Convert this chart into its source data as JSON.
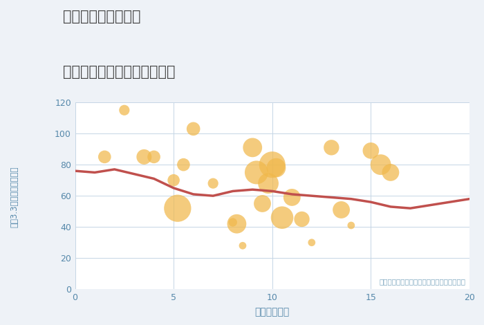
{
  "title_line1": "三重県伊賀市野村の",
  "title_line2": "駅距離別中古マンション価格",
  "xlabel": "駅距離（分）",
  "ylabel": "坪（3.3㎡）単価（万円）",
  "bg_color": "#eef2f7",
  "plot_bg_color": "#ffffff",
  "xlim": [
    0,
    20
  ],
  "ylim": [
    0,
    120
  ],
  "yticks": [
    0,
    20,
    40,
    60,
    80,
    100,
    120
  ],
  "xticks": [
    0,
    5,
    10,
    15,
    20
  ],
  "bubble_color": "#f0b84b",
  "bubble_alpha": 0.72,
  "line_color": "#c0504d",
  "line_width": 2.5,
  "annotation_text": "円の大きさは、取引のあった物件面積を示す",
  "annotation_color": "#7fa8c0",
  "scatter_x": [
    1.5,
    2.5,
    3.5,
    4.0,
    5.0,
    5.2,
    5.5,
    6.0,
    7.0,
    8.0,
    8.2,
    8.5,
    9.0,
    9.2,
    9.5,
    9.8,
    10.0,
    10.2,
    10.5,
    11.0,
    11.5,
    12.0,
    13.0,
    13.5,
    14.0,
    15.0,
    15.5,
    16.0
  ],
  "scatter_y": [
    85,
    115,
    85,
    85,
    70,
    52,
    80,
    103,
    68,
    43,
    42,
    28,
    91,
    75,
    55,
    68,
    80,
    78,
    46,
    59,
    45,
    30,
    91,
    51,
    41,
    89,
    80,
    75
  ],
  "scatter_size": [
    180,
    120,
    250,
    180,
    160,
    800,
    180,
    200,
    120,
    80,
    400,
    60,
    400,
    600,
    320,
    460,
    750,
    400,
    550,
    320,
    260,
    60,
    260,
    320,
    60,
    290,
    460,
    320
  ],
  "trend_x": [
    0,
    1,
    2,
    3,
    4,
    5,
    6,
    7,
    8,
    9,
    10,
    11,
    12,
    13,
    14,
    15,
    16,
    17,
    18,
    19,
    20
  ],
  "trend_y": [
    76,
    75,
    77,
    74,
    71,
    65,
    61,
    60,
    63,
    64,
    63,
    61,
    60,
    59,
    58,
    56,
    53,
    52,
    54,
    56,
    58
  ]
}
